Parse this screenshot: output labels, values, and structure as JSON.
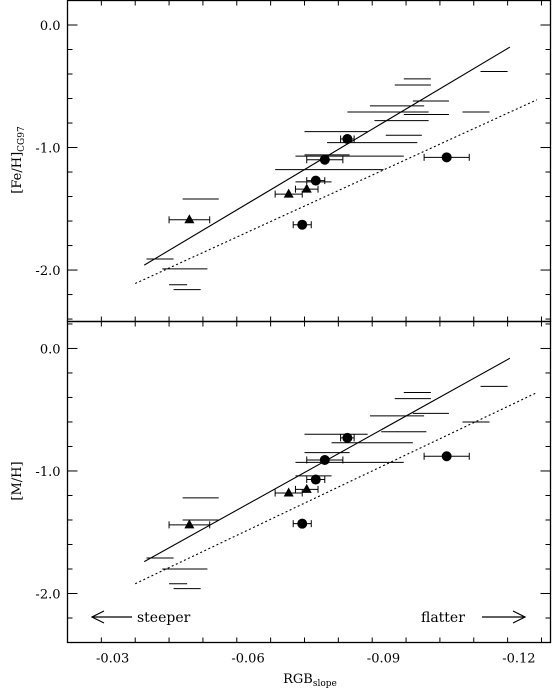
{
  "chart_data": [
    {
      "type": "scatter",
      "panel": "top",
      "ylabel_main": "[Fe/H]",
      "ylabel_sub": "CG97",
      "xlabel_main": "RGB",
      "xlabel_sub": "slope",
      "xlim": [
        -0.02,
        -0.127
      ],
      "ylim": [
        -2.42,
        0.2
      ],
      "xticks": [
        -0.03,
        -0.06,
        -0.09,
        -0.12
      ],
      "xtick_labels": [
        "-0.03",
        "-0.06",
        "-0.09",
        "-0.12"
      ],
      "yticks": [
        0.0,
        -1.0,
        -2.0
      ],
      "ytick_labels": [
        "0.0",
        "-1.0",
        "-2.0"
      ],
      "solid_line": {
        "x": [
          -0.037,
          -0.118
        ],
        "y": [
          -1.96,
          -0.18
        ]
      },
      "dotted_line": {
        "x": [
          -0.035,
          -0.124
        ],
        "y": [
          -2.11,
          -0.61
        ]
      },
      "error_bars_only": [
        {
          "x": -0.0975,
          "y": -0.44,
          "xerr": 0.003
        },
        {
          "x": -0.0965,
          "y": -0.49,
          "xerr": 0.004
        },
        {
          "x": -0.1005,
          "y": -0.62,
          "xerr": 0.004
        },
        {
          "x": -0.1145,
          "y": -0.38,
          "xerr": 0.003
        },
        {
          "x": -0.093,
          "y": -0.66,
          "xerr": 0.006
        },
        {
          "x": -0.091,
          "y": -0.71,
          "xerr": 0.009
        },
        {
          "x": -0.0995,
          "y": -0.73,
          "xerr": 0.005
        },
        {
          "x": -0.1105,
          "y": -0.71,
          "xerr": 0.003
        },
        {
          "x": -0.094,
          "y": -0.78,
          "xerr": 0.006
        },
        {
          "x": -0.0795,
          "y": -0.87,
          "xerr": 0.007
        },
        {
          "x": -0.0945,
          "y": -0.9,
          "xerr": 0.004
        },
        {
          "x": -0.0875,
          "y": -0.96,
          "xerr": 0.01
        },
        {
          "x": -0.0775,
          "y": -1.06,
          "xerr": 0.005
        },
        {
          "x": -0.0825,
          "y": -1.07,
          "xerr": 0.012
        },
        {
          "x": -0.078,
          "y": -1.18,
          "xerr": 0.012
        },
        {
          "x": -0.0745,
          "y": -1.28,
          "xerr": 0.004
        },
        {
          "x": -0.0495,
          "y": -1.42,
          "xerr": 0.004
        },
        {
          "x": -0.0405,
          "y": -1.91,
          "xerr": 0.003
        },
        {
          "x": -0.046,
          "y": -1.99,
          "xerr": 0.005
        },
        {
          "x": -0.0445,
          "y": -2.12,
          "xerr": 0.002
        },
        {
          "x": -0.0465,
          "y": -2.16,
          "xerr": 0.003
        }
      ],
      "circles": [
        {
          "x": -0.082,
          "y": -0.93,
          "xerr": 0.0015
        },
        {
          "x": -0.077,
          "y": -1.1,
          "xerr": 0.004
        },
        {
          "x": -0.104,
          "y": -1.08,
          "xerr": 0.005
        },
        {
          "x": -0.075,
          "y": -1.27,
          "xerr": 0.002
        },
        {
          "x": -0.072,
          "y": -1.63,
          "xerr": 0.002
        }
      ],
      "triangles": [
        {
          "x": -0.047,
          "y": -1.59,
          "xerr": 0.0045
        },
        {
          "x": -0.069,
          "y": -1.38,
          "xerr": 0.003
        },
        {
          "x": -0.073,
          "y": -1.34,
          "xerr": 0.0025
        }
      ]
    },
    {
      "type": "scatter",
      "panel": "bottom",
      "ylabel_main": "[M/H]",
      "ylabel_sub": "",
      "xlabel_main": "RGB",
      "xlabel_sub": "slope",
      "xlim": [
        -0.02,
        -0.127
      ],
      "ylim": [
        -2.4,
        0.22
      ],
      "xticks": [
        -0.03,
        -0.06,
        -0.09,
        -0.12
      ],
      "xtick_labels": [
        "-0.03",
        "-0.06",
        "-0.09",
        "-0.12"
      ],
      "yticks": [
        0.0,
        -1.0,
        -2.0
      ],
      "ytick_labels": [
        "0.0",
        "-1.0",
        "-2.0"
      ],
      "solid_line": {
        "x": [
          -0.037,
          -0.118
        ],
        "y": [
          -1.74,
          -0.08
        ]
      },
      "dotted_line": {
        "x": [
          -0.035,
          -0.124
        ],
        "y": [
          -1.92,
          -0.36
        ]
      },
      "error_bars_only": [
        {
          "x": -0.0975,
          "y": -0.36,
          "xerr": 0.003
        },
        {
          "x": -0.0965,
          "y": -0.41,
          "xerr": 0.004
        },
        {
          "x": -0.1005,
          "y": -0.53,
          "xerr": 0.004
        },
        {
          "x": -0.1145,
          "y": -0.31,
          "xerr": 0.003
        },
        {
          "x": -0.093,
          "y": -0.55,
          "xerr": 0.006
        },
        {
          "x": -0.0945,
          "y": -0.68,
          "xerr": 0.005
        },
        {
          "x": -0.1105,
          "y": -0.6,
          "xerr": 0.003
        },
        {
          "x": -0.0795,
          "y": -0.7,
          "xerr": 0.007
        },
        {
          "x": -0.0875,
          "y": -0.77,
          "xerr": 0.009
        },
        {
          "x": -0.0775,
          "y": -0.85,
          "xerr": 0.005
        },
        {
          "x": -0.0825,
          "y": -0.93,
          "xerr": 0.012
        },
        {
          "x": -0.0745,
          "y": -1.04,
          "xerr": 0.004
        },
        {
          "x": -0.0495,
          "y": -1.22,
          "xerr": 0.004
        },
        {
          "x": -0.0495,
          "y": -1.4,
          "xerr": 0.004
        },
        {
          "x": -0.0405,
          "y": -1.71,
          "xerr": 0.003
        },
        {
          "x": -0.046,
          "y": -1.8,
          "xerr": 0.005
        },
        {
          "x": -0.0445,
          "y": -1.92,
          "xerr": 0.002
        },
        {
          "x": -0.0465,
          "y": -1.96,
          "xerr": 0.003
        }
      ],
      "circles": [
        {
          "x": -0.082,
          "y": -0.73,
          "xerr": 0.0015
        },
        {
          "x": -0.077,
          "y": -0.91,
          "xerr": 0.004
        },
        {
          "x": -0.104,
          "y": -0.88,
          "xerr": 0.005
        },
        {
          "x": -0.075,
          "y": -1.07,
          "xerr": 0.002
        },
        {
          "x": -0.072,
          "y": -1.43,
          "xerr": 0.002
        }
      ],
      "triangles": [
        {
          "x": -0.047,
          "y": -1.44,
          "xerr": 0.0045
        },
        {
          "x": -0.069,
          "y": -1.18,
          "xerr": 0.003
        },
        {
          "x": -0.073,
          "y": -1.15,
          "xerr": 0.0025
        }
      ]
    }
  ],
  "annotations": {
    "left": "steeper",
    "right": "flatter"
  }
}
